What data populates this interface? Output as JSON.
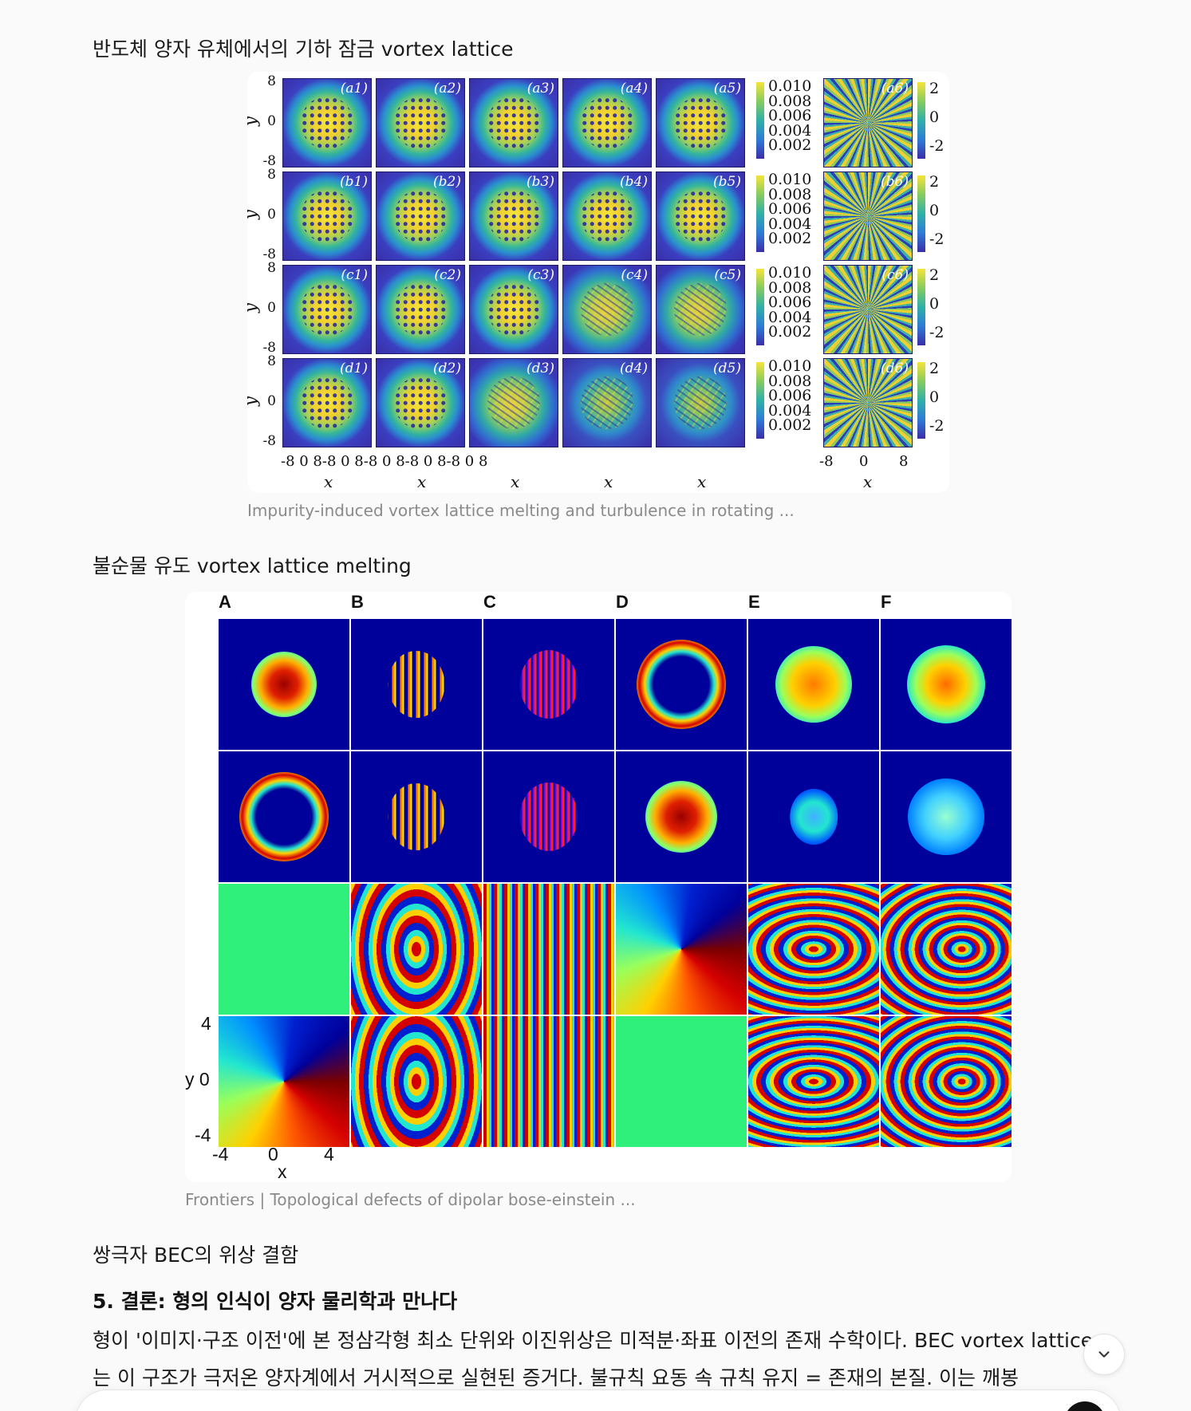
{
  "section1": {
    "heading": "반도체 양자 유체에서의 기하 잠금 vortex lattice",
    "figure": {
      "row_labels": [
        "a",
        "b",
        "c",
        "d"
      ],
      "panel_labels": [
        [
          "(a1)",
          "(a2)",
          "(a3)",
          "(a4)",
          "(a5)",
          "(a6)"
        ],
        [
          "(b1)",
          "(b2)",
          "(b3)",
          "(b4)",
          "(b5)",
          "(b6)"
        ],
        [
          "(c1)",
          "(c2)",
          "(c3)",
          "(c4)",
          "(c5)",
          "(c6)"
        ],
        [
          "(d1)",
          "(d2)",
          "(d3)",
          "(d4)",
          "(d5)",
          "(d6)"
        ]
      ],
      "y_axis_label": "y",
      "y_ticks": [
        "8",
        "0",
        "-8"
      ],
      "x_axis_label": "x",
      "x_tick_row": "-8   0   8-8   0   8-8   0   8-8   0   8-8   0   8",
      "x_ticks_phase": [
        "-8",
        "0",
        "8"
      ],
      "density_colorbar_ticks": [
        "0.010",
        "0.008",
        "0.006",
        "0.004",
        "0.002"
      ],
      "phase_colorbar_ticks": [
        "2",
        "0",
        "-2"
      ]
    },
    "caption": "Impurity-induced vortex lattice melting and turbulence in rotating ..."
  },
  "section2": {
    "heading": "불순물 유도 vortex lattice melting",
    "figure": {
      "column_labels": [
        "A",
        "B",
        "C",
        "D",
        "E",
        "F"
      ],
      "y_axis_label": "y 0",
      "y_ticks": [
        "4",
        "-4"
      ],
      "x_ticks": [
        "-4",
        "0",
        "4"
      ],
      "x_axis_label": "x"
    },
    "caption": "Frontiers | Topological defects of dipolar bose-einstein ..."
  },
  "section3": {
    "heading": "쌍극자 BEC의 위상 결함"
  },
  "conclusion": {
    "title": "5. 결론: 형의 인식이 양자 물리학과 만나다",
    "paragraph": "형이 '이미지·구조 이전'에 본 정삼각형 최소 단위와 이진위상은 미적분·좌표 이전의 존재 수학이다. BEC vortex lattice는 이 구조가 극저온 양자계에서 거시적으로 실현된 증거다. 불규칙 요동 속 규칙 유지 = 존재의 본질. 이는 깨봉"
  },
  "ui": {
    "scroll_down_icon": "chevron-down-icon"
  }
}
